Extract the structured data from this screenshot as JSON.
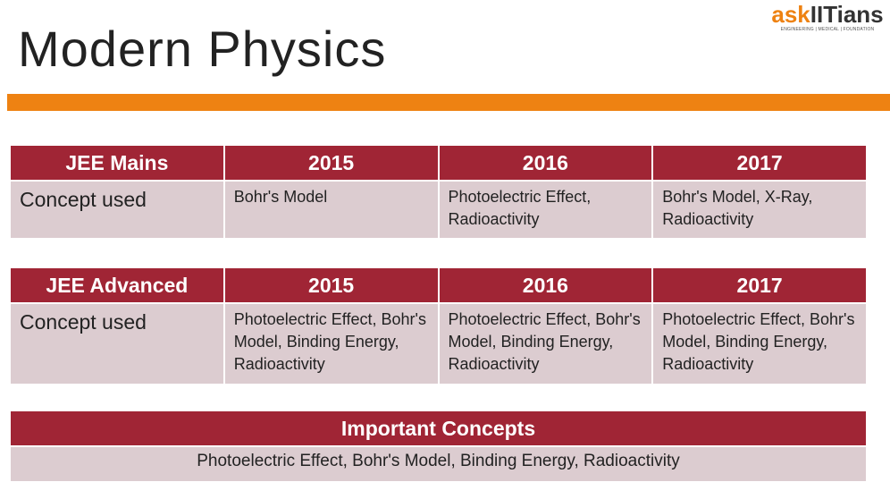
{
  "title": "Modern Physics",
  "logo": {
    "ask": "ask",
    "iit": "IITians",
    "tagline": "ENGINEERING | MEDICAL | FOUNDATION"
  },
  "colors": {
    "header": "#a02535",
    "cell": "#dcccd0",
    "accent": "#ee8212"
  },
  "mains": {
    "header": [
      "JEE Mains",
      "2015",
      "2016",
      "2017"
    ],
    "row": [
      "Concept used",
      "Bohr's Model",
      "Photoelectric Effect, Radioactivity",
      "Bohr's Model, X-Ray, Radioactivity"
    ]
  },
  "advanced": {
    "header": [
      "JEE Advanced",
      "2015",
      "2016",
      "2017"
    ],
    "row": [
      "Concept used",
      "Photoelectric Effect, Bohr's Model, Binding Energy, Radioactivity",
      "Photoelectric Effect, Bohr's Model, Binding Energy, Radioactivity",
      "Photoelectric Effect, Bohr's Model, Binding Energy, Radioactivity"
    ]
  },
  "important": {
    "header": "Important Concepts",
    "row": "Photoelectric Effect, Bohr's Model, Binding Energy, Radioactivity"
  }
}
